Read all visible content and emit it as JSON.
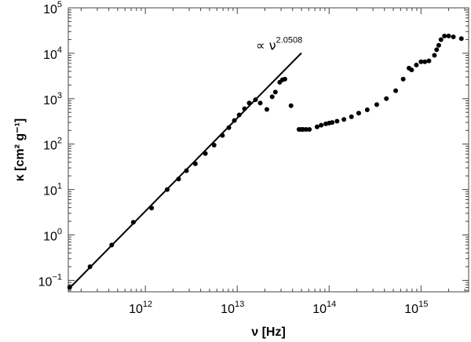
{
  "chart_data": {
    "type": "scatter",
    "x_scale": "log",
    "y_scale": "log",
    "xlim": [
      145000000000.0,
      3300000000000000.0
    ],
    "ylim": [
      0.056,
      100000
    ],
    "xlabel": "ν [Hz]",
    "ylabel": "κ [cm² g⁻¹]",
    "x_ticks": [
      {
        "value": 1000000000000.0,
        "base": "10",
        "exp": "12"
      },
      {
        "value": 10000000000000.0,
        "base": "10",
        "exp": "13"
      },
      {
        "value": 100000000000000.0,
        "base": "10",
        "exp": "14"
      },
      {
        "value": 1000000000000000.0,
        "base": "10",
        "exp": "15"
      }
    ],
    "y_ticks": [
      {
        "value": 0.1,
        "base": "10",
        "exp": "−1"
      },
      {
        "value": 1,
        "base": "10",
        "exp": "0"
      },
      {
        "value": 10,
        "base": "10",
        "exp": "1"
      },
      {
        "value": 100,
        "base": "10",
        "exp": "2"
      },
      {
        "value": 1000,
        "base": "10",
        "exp": "3"
      },
      {
        "value": 10000,
        "base": "10",
        "exp": "4"
      },
      {
        "value": 100000,
        "base": "10",
        "exp": "5"
      }
    ],
    "fit_line": {
      "slope": 2.0508,
      "x_start": 150000000000.0,
      "y_start": 0.068,
      "x_end": 50000000000000.0
    },
    "annotation": {
      "prefix": "∝ ν",
      "exponent": "2.0508",
      "x": 16000000000000.0,
      "y": 12000
    },
    "points": [
      [
        150000000000.0,
        0.07
      ],
      [
        250000000000.0,
        0.2
      ],
      [
        430000000000.0,
        0.6
      ],
      [
        740000000000.0,
        1.9
      ],
      [
        1170000000000.0,
        3.9
      ],
      [
        1730000000000.0,
        10
      ],
      [
        2300000000000.0,
        17
      ],
      [
        2800000000000.0,
        26
      ],
      [
        3500000000000.0,
        37
      ],
      [
        4500000000000.0,
        62
      ],
      [
        5600000000000.0,
        95
      ],
      [
        6900000000000.0,
        155
      ],
      [
        8100000000000.0,
        230
      ],
      [
        9300000000000.0,
        330
      ],
      [
        10500000000000.0,
        440
      ],
      [
        12000000000000.0,
        600
      ],
      [
        13500000000000.0,
        800
      ],
      [
        15800000000000.0,
        950
      ],
      [
        17800000000000.0,
        800
      ],
      [
        21000000000000.0,
        580
      ],
      [
        24000000000000.0,
        1100
      ],
      [
        26000000000000.0,
        1400
      ],
      [
        29000000000000.0,
        2300
      ],
      [
        31000000000000.0,
        2600
      ],
      [
        33000000000000.0,
        2700
      ],
      [
        38500000000000.0,
        700
      ],
      [
        47000000000000.0,
        210
      ],
      [
        50000000000000.0,
        210
      ],
      [
        52000000000000.0,
        210
      ],
      [
        56000000000000.0,
        210
      ],
      [
        61000000000000.0,
        210
      ],
      [
        74000000000000.0,
        240
      ],
      [
        82000000000000.0,
        260
      ],
      [
        92000000000000.0,
        280
      ],
      [
        100000000000000.0,
        290
      ],
      [
        108000000000000.0,
        300
      ],
      [
        122000000000000.0,
        320
      ],
      [
        145000000000000.0,
        350
      ],
      [
        175000000000000.0,
        400
      ],
      [
        210000000000000.0,
        480
      ],
      [
        260000000000000.0,
        570
      ],
      [
        330000000000000.0,
        740
      ],
      [
        420000000000000.0,
        1000
      ],
      [
        530000000000000.0,
        1500
      ],
      [
        640000000000000.0,
        2700
      ],
      [
        740000000000000.0,
        4700
      ],
      [
        790000000000000.0,
        4300
      ],
      [
        890000000000000.0,
        5500
      ],
      [
        1000000000000000.0,
        6500
      ],
      [
        1100000000000000.0,
        6500
      ],
      [
        1220000000000000.0,
        6800
      ],
      [
        1400000000000000.0,
        9000
      ],
      [
        1480000000000000.0,
        12000
      ],
      [
        1560000000000000.0,
        15000
      ],
      [
        1650000000000000.0,
        20000
      ],
      [
        1800000000000000.0,
        24000
      ],
      [
        2000000000000000.0,
        24000
      ],
      [
        2250000000000000.0,
        23000
      ],
      [
        2750000000000000.0,
        21000
      ]
    ]
  }
}
